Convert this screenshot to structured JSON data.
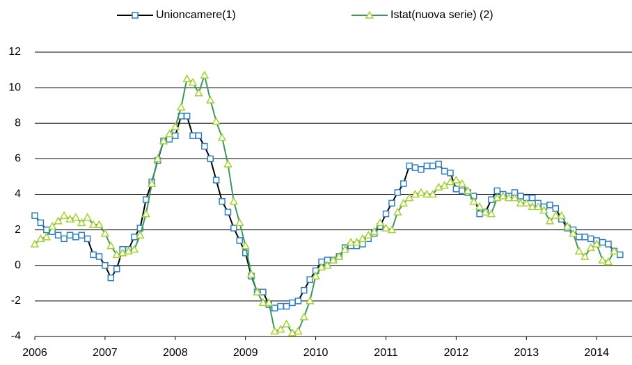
{
  "chart_data": {
    "type": "line",
    "categories": [
      "2006",
      null,
      null,
      null,
      null,
      null,
      null,
      null,
      null,
      null,
      null,
      null,
      "2007",
      null,
      null,
      null,
      null,
      null,
      null,
      null,
      null,
      null,
      null,
      null,
      "2008",
      null,
      null,
      null,
      null,
      null,
      null,
      null,
      null,
      null,
      null,
      null,
      "2009",
      null,
      null,
      null,
      null,
      null,
      null,
      null,
      null,
      null,
      null,
      null,
      "2010",
      null,
      null,
      null,
      null,
      null,
      null,
      null,
      null,
      null,
      null,
      null,
      "2011",
      null,
      null,
      null,
      null,
      null,
      null,
      null,
      null,
      null,
      null,
      null,
      "2012",
      null,
      null,
      null,
      null,
      null,
      null,
      null,
      null,
      null,
      null,
      null,
      "2013",
      null,
      null,
      null,
      null,
      null,
      null,
      null,
      null,
      null,
      null,
      null,
      "2014",
      null,
      null,
      null,
      null
    ],
    "series": [
      {
        "name": "Unioncamere(1)",
        "color": "#000000",
        "marker": "square",
        "marker_color": "#2e7fc2",
        "values": [
          2.8,
          2.4,
          2.0,
          1.9,
          1.7,
          1.5,
          1.7,
          1.6,
          1.7,
          1.5,
          0.6,
          0.5,
          0.0,
          -0.7,
          -0.2,
          0.9,
          0.9,
          1.6,
          2.1,
          3.7,
          4.7,
          5.9,
          7.0,
          7.1,
          7.3,
          8.4,
          8.4,
          7.3,
          7.3,
          6.7,
          6.0,
          4.8,
          3.6,
          3.0,
          2.1,
          1.4,
          0.7,
          -0.6,
          -1.5,
          -1.5,
          -2.2,
          -2.4,
          -2.3,
          -2.3,
          -2.1,
          -2.0,
          -1.4,
          -0.8,
          -0.3,
          0.2,
          0.3,
          0.3,
          0.5,
          1.0,
          1.1,
          1.1,
          1.2,
          1.5,
          1.8,
          2.2,
          2.9,
          3.5,
          4.1,
          4.6,
          5.6,
          5.5,
          5.4,
          5.6,
          5.6,
          5.7,
          5.3,
          5.2,
          4.3,
          4.2,
          4.1,
          3.9,
          2.9,
          3.0,
          3.7,
          4.2,
          4.0,
          3.9,
          4.1,
          3.9,
          3.8,
          3.8,
          3.5,
          3.3,
          3.4,
          3.2,
          2.6,
          2.1,
          2.0,
          1.6,
          1.6,
          1.5,
          1.4,
          1.3,
          1.2,
          0.8,
          0.6
        ]
      },
      {
        "name": "Istat(nuova serie) (2)",
        "color": "#3a9a5c",
        "marker": "triangle",
        "marker_color": "#a6d12e",
        "values": [
          1.2,
          1.5,
          1.6,
          2.2,
          2.5,
          2.8,
          2.6,
          2.7,
          2.4,
          2.7,
          2.3,
          2.3,
          1.8,
          1.1,
          0.6,
          0.7,
          0.8,
          0.9,
          1.7,
          2.9,
          4.6,
          6.0,
          7.0,
          7.4,
          7.8,
          8.9,
          10.5,
          10.3,
          9.7,
          10.7,
          9.3,
          8.1,
          7.2,
          5.7,
          3.6,
          2.4,
          1.1,
          -0.5,
          -1.5,
          -2.1,
          -2.1,
          -3.7,
          -3.6,
          -3.3,
          -3.8,
          -3.7,
          -2.9,
          -2.0,
          -0.6,
          -0.1,
          0.0,
          0.3,
          0.5,
          0.9,
          1.3,
          1.3,
          1.5,
          1.7,
          1.9,
          2.4,
          2.1,
          2.0,
          3.0,
          3.5,
          3.8,
          4.0,
          4.1,
          4.0,
          4.0,
          4.4,
          4.5,
          4.7,
          4.8,
          4.6,
          4.2,
          3.6,
          3.3,
          3.0,
          2.9,
          3.8,
          3.9,
          3.8,
          3.8,
          3.5,
          3.5,
          3.3,
          3.3,
          3.1,
          2.5,
          2.8,
          2.8,
          2.2,
          1.8,
          0.8,
          0.5,
          1.0,
          1.2,
          0.3,
          0.2,
          0.8,
          null
        ]
      }
    ],
    "ylim": [
      -4,
      12
    ],
    "yticks": [
      -4,
      -2,
      0,
      2,
      4,
      6,
      8,
      10,
      12
    ],
    "grid": true,
    "legend": "top"
  }
}
